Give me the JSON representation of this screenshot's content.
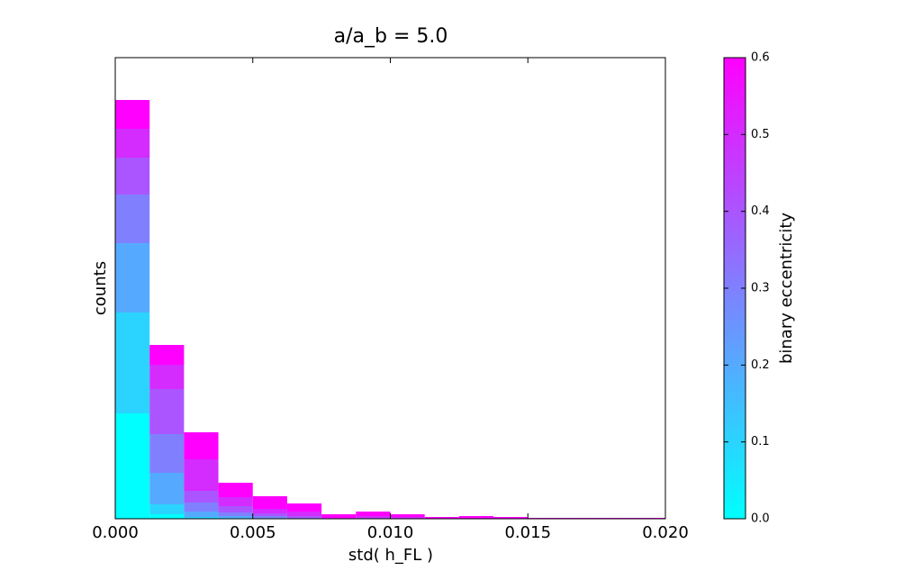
{
  "chart_data": {
    "type": "stacked-histogram",
    "title": "a/a_b = 5.0",
    "x_label": "std( h_FL )",
    "y_label": "counts",
    "bins": [
      0,
      0.00125,
      0.0025,
      0.00375,
      0.005,
      0.00625,
      0.0075,
      0.00875,
      0.01,
      0.01125,
      0.0125,
      0.01375,
      0.015,
      0.01625,
      0.0175,
      0.01875,
      0.02
    ],
    "series": [
      {
        "color": "#00ffff",
        "values": [
          117,
          5,
          0,
          0,
          0,
          0,
          0,
          0,
          0,
          0,
          0,
          0,
          0,
          0,
          0,
          0
        ]
      },
      {
        "color": "#2ad4ff",
        "values": [
          112,
          11,
          2,
          1,
          0,
          0,
          0,
          0,
          0,
          0,
          0,
          0,
          0,
          0,
          0,
          0
        ]
      },
      {
        "color": "#55aaff",
        "values": [
          77,
          35,
          6,
          2,
          1,
          0,
          0,
          0,
          0,
          0,
          0,
          0,
          0,
          0,
          0,
          0
        ]
      },
      {
        "color": "#8080ff",
        "values": [
          54,
          43,
          10,
          4,
          2,
          1,
          0,
          0,
          0,
          0,
          0,
          0,
          0,
          0,
          0,
          0
        ]
      },
      {
        "color": "#aa55ff",
        "values": [
          41,
          50,
          13,
          7,
          3,
          2,
          0,
          1,
          0,
          0,
          0,
          0,
          0,
          0,
          0,
          0
        ]
      },
      {
        "color": "#d42bff",
        "values": [
          32,
          27,
          35,
          10,
          5,
          5,
          1,
          2,
          2,
          0,
          0,
          0,
          0,
          0,
          0,
          0
        ]
      },
      {
        "color": "#ff00ff",
        "values": [
          32,
          22,
          30,
          16,
          14,
          9,
          4,
          5,
          3,
          2,
          3,
          2,
          1,
          1,
          1,
          1
        ]
      }
    ],
    "xlim": [
      0,
      0.02
    ],
    "xticks": [
      {
        "value": 0,
        "label": "0.000"
      },
      {
        "value": 0.005,
        "label": "0.005"
      },
      {
        "value": 0.01,
        "label": "0.010"
      },
      {
        "value": 0.015,
        "label": "0.015"
      },
      {
        "value": 0.02,
        "label": "0.020"
      }
    ],
    "ylim": [
      0,
      512
    ],
    "colorbar": {
      "label": "binary eccentricity",
      "lim": [
        0,
        0.6
      ],
      "ticks": [
        {
          "value": 0,
          "label": "0.0"
        },
        {
          "value": 0.1,
          "label": "0.1"
        },
        {
          "value": 0.2,
          "label": "0.2"
        },
        {
          "value": 0.3,
          "label": "0.3"
        },
        {
          "value": 0.4,
          "label": "0.4"
        },
        {
          "value": 0.5,
          "label": "0.5"
        },
        {
          "value": 0.6,
          "label": "0.6"
        }
      ]
    }
  }
}
